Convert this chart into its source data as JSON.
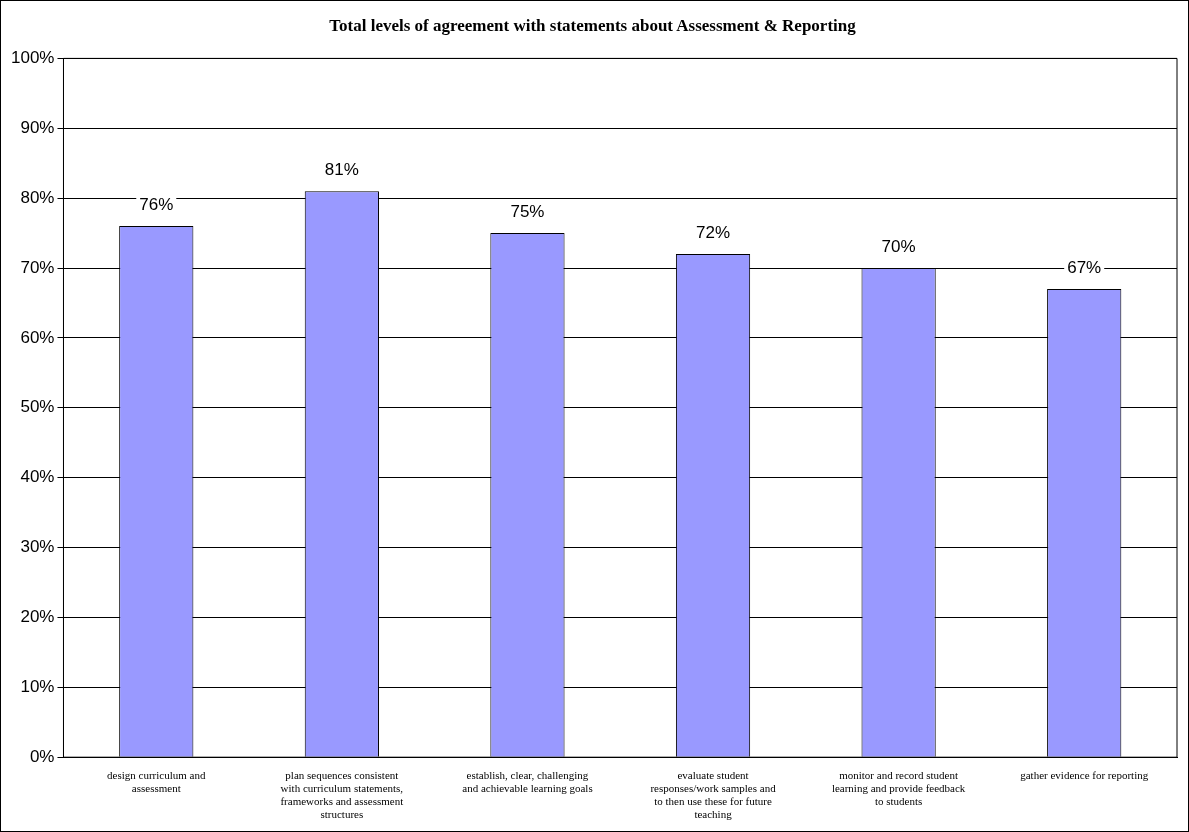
{
  "chart_data": {
    "type": "bar",
    "title": "Total levels of agreement with statements about Assessment & Reporting",
    "categories": [
      "design curriculum and assessment",
      "plan sequences consistent with curriculum statements, frameworks and assessment structures",
      "establish, clear, challenging and achievable learning goals",
      "evaluate student responses/work samples and to then use these for future teaching",
      "monitor and record student learning and provide feedback to students",
      "gather evidence for reporting"
    ],
    "values": [
      76,
      81,
      75,
      72,
      70,
      67
    ],
    "value_labels": [
      "76%",
      "81%",
      "75%",
      "72%",
      "70%",
      "67%"
    ],
    "color": "#9999ff",
    "ylim": [
      0,
      100
    ],
    "yticks": [
      {
        "value": 0,
        "label": "0%"
      },
      {
        "value": 10,
        "label": "10%"
      },
      {
        "value": 20,
        "label": "20%"
      },
      {
        "value": 30,
        "label": "30%"
      },
      {
        "value": 40,
        "label": "40%"
      },
      {
        "value": 50,
        "label": "50%"
      },
      {
        "value": 60,
        "label": "60%"
      },
      {
        "value": 70,
        "label": "70%"
      },
      {
        "value": 80,
        "label": "80%"
      },
      {
        "value": 90,
        "label": "90%"
      },
      {
        "value": 100,
        "label": "100%"
      }
    ],
    "grid": "y"
  }
}
